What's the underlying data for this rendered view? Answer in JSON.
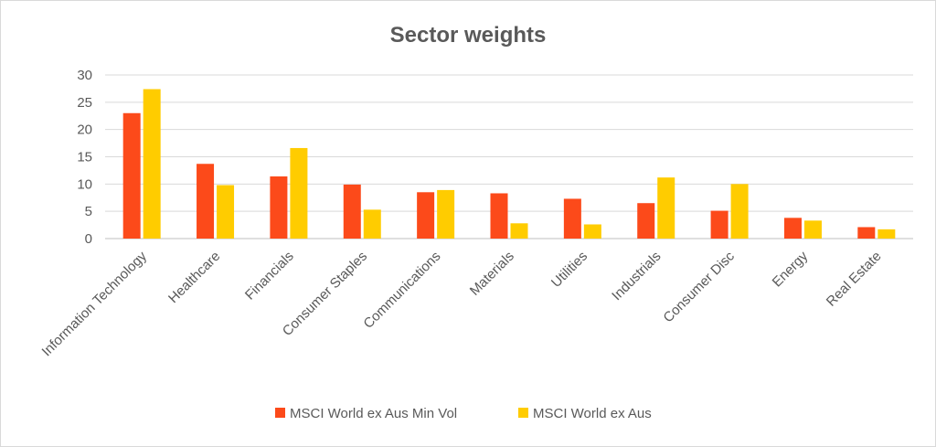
{
  "chart_data": {
    "type": "bar",
    "title": "Sector weights",
    "xlabel": "",
    "ylabel": "",
    "ylim": [
      0,
      30
    ],
    "yticks": [
      0,
      5,
      10,
      15,
      20,
      25,
      30
    ],
    "grid": true,
    "legend_position": "bottom",
    "categories": [
      "Information Technology",
      "Healthcare",
      "Financials",
      "Consumer Staples",
      "Communications",
      "Materials",
      "Utilities",
      "Industrials",
      "Consumer Disc",
      "Energy",
      "Real Estate"
    ],
    "series": [
      {
        "name": "MSCI World ex Aus Min Vol",
        "color": "#fc4a1a",
        "values": [
          23.0,
          13.7,
          11.4,
          9.9,
          8.5,
          8.3,
          7.3,
          6.5,
          5.1,
          3.8,
          2.1
        ]
      },
      {
        "name": "MSCI World ex Aus",
        "color": "#ffcc00",
        "values": [
          27.4,
          9.8,
          16.6,
          5.3,
          8.9,
          2.8,
          2.6,
          11.2,
          10.0,
          3.3,
          1.7
        ]
      }
    ]
  }
}
